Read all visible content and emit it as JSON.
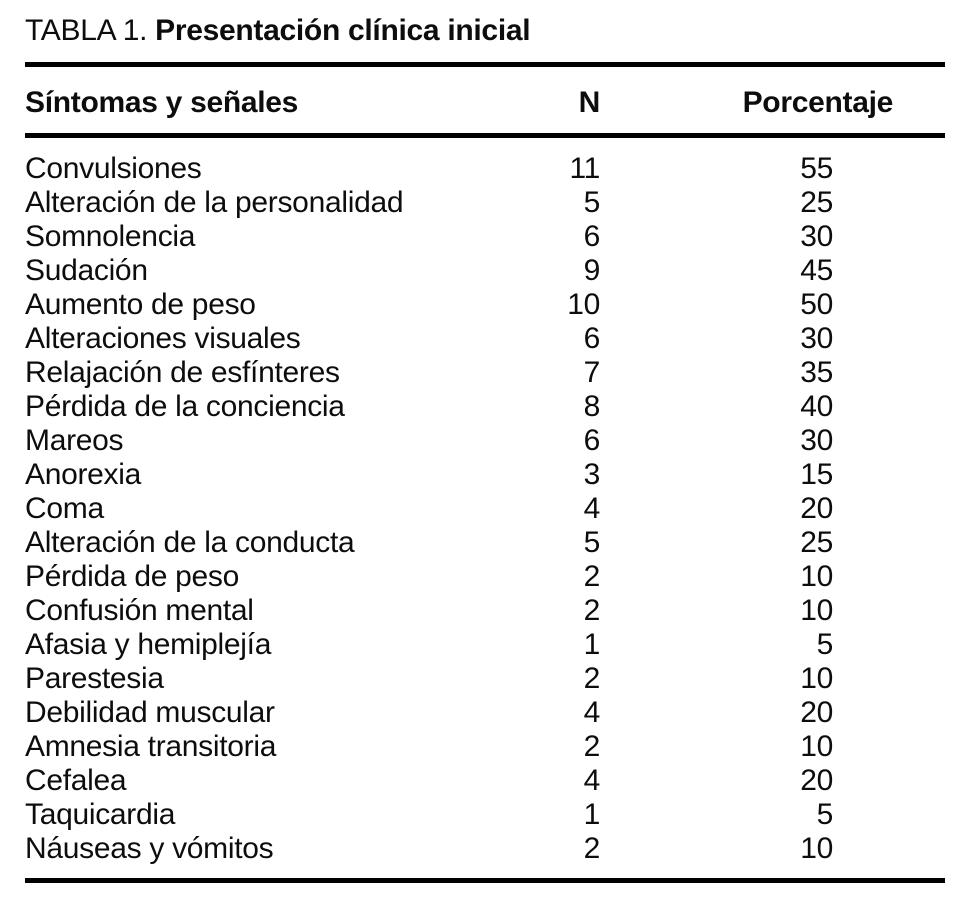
{
  "page": {
    "background_color": "#ffffff",
    "text_color": "#0d0d0d",
    "rule_color": "#000000"
  },
  "table": {
    "title_prefix": "TABLA 1.",
    "title": "Presentación clínica inicial",
    "columns": {
      "symptom": "Síntomas y señales",
      "n": "N",
      "pct": "Porcentaje"
    },
    "rows": [
      [
        "Convulsiones",
        "11",
        "55"
      ],
      [
        "Alteración de la personalidad",
        "5",
        "25"
      ],
      [
        "Somnolencia",
        "6",
        "30"
      ],
      [
        "Sudación",
        "9",
        "45"
      ],
      [
        "Aumento de peso",
        "10",
        "50"
      ],
      [
        "Alteraciones visuales",
        "6",
        "30"
      ],
      [
        "Relajación de esfínteres",
        "7",
        "35"
      ],
      [
        "Pérdida de la conciencia",
        "8",
        "40"
      ],
      [
        "Mareos",
        "6",
        "30"
      ],
      [
        "Anorexia",
        "3",
        "15"
      ],
      [
        "Coma",
        "4",
        "20"
      ],
      [
        "Alteración de la conducta",
        "5",
        "25"
      ],
      [
        "Pérdida de peso",
        "2",
        "10"
      ],
      [
        "Confusión mental",
        "2",
        "10"
      ],
      [
        "Afasia y hemiplejía",
        "1",
        "5"
      ],
      [
        "Parestesia",
        "2",
        "10"
      ],
      [
        "Debilidad muscular",
        "4",
        "20"
      ],
      [
        "Amnesia transitoria",
        "2",
        "10"
      ],
      [
        "Cefalea",
        "4",
        "20"
      ],
      [
        "Taquicardia",
        "1",
        "5"
      ],
      [
        "Náuseas y vómitos",
        "2",
        "10"
      ]
    ]
  },
  "chart_data": {
    "type": "table",
    "title": "TABLA 1. Presentación clínica inicial",
    "categories": [
      "Convulsiones",
      "Alteración de la personalidad",
      "Somnolencia",
      "Sudación",
      "Aumento de peso",
      "Alteraciones visuales",
      "Relajación de esfínteres",
      "Pérdida de la conciencia",
      "Mareos",
      "Anorexia",
      "Coma",
      "Alteración de la conducta",
      "Pérdida de peso",
      "Confusión mental",
      "Afasia y hemiplejía",
      "Parestesia",
      "Debilidad muscular",
      "Amnesia transitoria",
      "Cefalea",
      "Taquicardia",
      "Náuseas y vómitos"
    ],
    "series": [
      {
        "name": "N",
        "values": [
          11,
          5,
          6,
          9,
          10,
          6,
          7,
          8,
          6,
          3,
          4,
          5,
          2,
          2,
          1,
          2,
          4,
          2,
          4,
          1,
          2
        ]
      },
      {
        "name": "Porcentaje",
        "values": [
          55,
          25,
          30,
          45,
          50,
          30,
          35,
          40,
          30,
          15,
          20,
          25,
          10,
          10,
          5,
          10,
          20,
          10,
          20,
          5,
          10
        ]
      }
    ]
  }
}
